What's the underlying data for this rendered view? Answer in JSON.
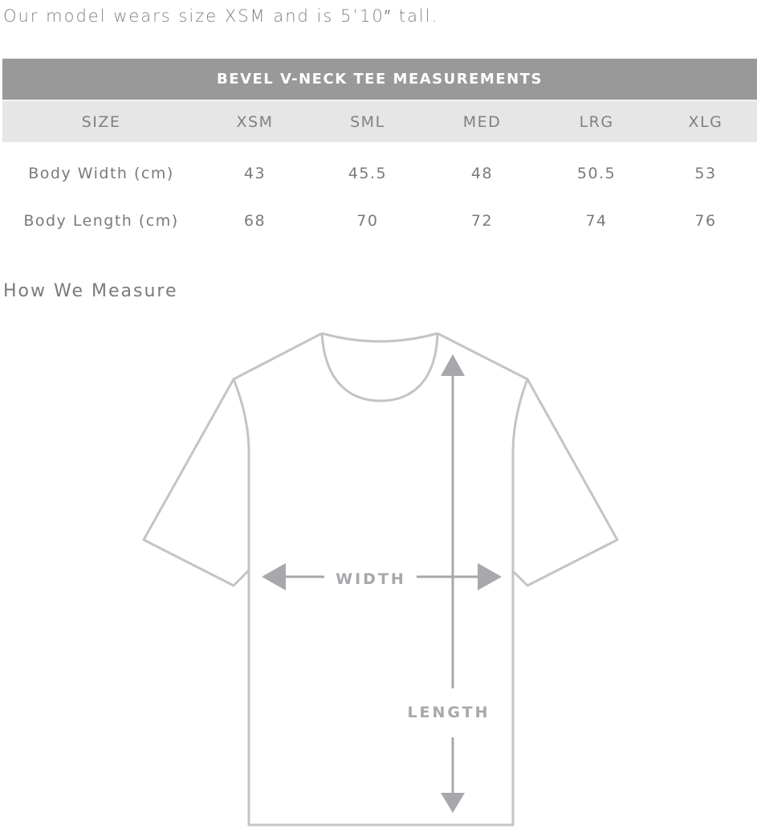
{
  "intro": "Our model wears size XSM and is 5’10″ tall.",
  "table": {
    "title": "BEVEL V-NECK TEE MEASUREMENTS",
    "headers": [
      "SIZE",
      "XSM",
      "SML",
      "MED",
      "LRG",
      "XLG"
    ],
    "rows": [
      [
        "Body Width (cm)",
        "43",
        "45.5",
        "48",
        "50.5",
        "53"
      ],
      [
        "Body Length (cm)",
        "68",
        "70",
        "72",
        "74",
        "76"
      ]
    ]
  },
  "how_title": "How We Measure",
  "diagram": {
    "width_label": "WIDTH",
    "length_label": "LENGTH",
    "outline_color": "#c4c4c4",
    "arrow_color": "#a7a8ab"
  }
}
